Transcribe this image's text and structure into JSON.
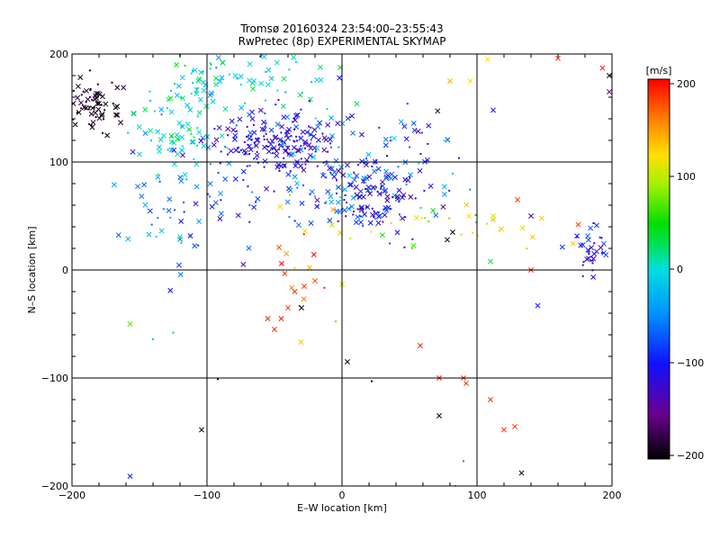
{
  "chart_data": {
    "type": "scatter",
    "title": "Tromsø 20160324 23:54:00–23:55:43",
    "subtitle": "RwPretec (8p) EXPERIMENTAL SKYMAP",
    "xlabel": "E–W location [km]",
    "ylabel": "N–S location [km]",
    "xlim": [
      -200,
      200
    ],
    "ylim": [
      -200,
      200
    ],
    "x_ticks": [
      -200,
      -100,
      0,
      100,
      200
    ],
    "y_ticks": [
      -200,
      -100,
      0,
      100,
      200
    ],
    "x_tick_labels": [
      "−200",
      "−100",
      "0",
      "100",
      "200"
    ],
    "y_tick_labels": [
      "−200",
      "−100",
      "0",
      "100",
      "200"
    ],
    "grid": true,
    "marker_types": [
      "cross",
      "dot"
    ],
    "colorbar": {
      "label": "[m/s]",
      "range": [
        -200,
        200
      ],
      "ticks": [
        200,
        100,
        0,
        -100,
        -200
      ],
      "tick_labels": [
        "200",
        "100",
        "0",
        "−100",
        "−200"
      ],
      "colormap": "rainbow (black → purple → blue → cyan → green → yellow → red)"
    },
    "clusters": [
      {
        "x": -185,
        "y": 152,
        "sx": 12,
        "sy": 12,
        "n": 70,
        "v": -190,
        "vs": 10
      },
      {
        "x": -50,
        "y": 120,
        "sx": 20,
        "sy": 15,
        "n": 170,
        "v": -110,
        "vs": 20
      },
      {
        "x": -120,
        "y": 130,
        "sx": 18,
        "sy": 18,
        "n": 70,
        "v": -10,
        "vs": 25
      },
      {
        "x": -70,
        "y": 175,
        "sx": 30,
        "sy": 15,
        "n": 80,
        "v": 0,
        "vs": 25
      },
      {
        "x": 5,
        "y": 95,
        "sx": 40,
        "sy": 30,
        "n": 170,
        "v": -80,
        "vs": 40
      },
      {
        "x": 30,
        "y": 65,
        "sx": 20,
        "sy": 15,
        "n": 90,
        "v": -115,
        "vs": 30
      },
      {
        "x": -110,
        "y": 60,
        "sx": 25,
        "sy": 25,
        "n": 60,
        "v": -70,
        "vs": 30
      },
      {
        "x": 80,
        "y": 40,
        "sx": 45,
        "sy": 12,
        "n": 30,
        "v": 90,
        "vs": 30
      },
      {
        "x": 190,
        "y": 18,
        "sx": 8,
        "sy": 10,
        "n": 40,
        "v": -100,
        "vs": 20
      },
      {
        "x": -30,
        "y": 5,
        "sx": 25,
        "sy": 40,
        "n": 20,
        "v": 160,
        "vs": 30
      }
    ],
    "points": [
      {
        "x": -55,
        "y": -45,
        "v": 190,
        "m": "cross"
      },
      {
        "x": -50,
        "y": -55,
        "v": 185,
        "m": "cross"
      },
      {
        "x": -40,
        "y": -35,
        "v": 180,
        "m": "cross"
      },
      {
        "x": -35,
        "y": -20,
        "v": 185,
        "m": "cross"
      },
      {
        "x": -28,
        "y": -15,
        "v": 180,
        "m": "cross"
      },
      {
        "x": -20,
        "y": -10,
        "v": 175,
        "m": "cross"
      },
      {
        "x": -30,
        "y": -35,
        "v": -200,
        "m": "cross"
      },
      {
        "x": -45,
        "y": -45,
        "v": 190,
        "m": "cross"
      },
      {
        "x": 58,
        "y": -70,
        "v": 190,
        "m": "cross"
      },
      {
        "x": 72,
        "y": -100,
        "v": 190,
        "m": "cross"
      },
      {
        "x": 90,
        "y": -100,
        "v": 185,
        "m": "cross"
      },
      {
        "x": 92,
        "y": -105,
        "v": 180,
        "m": "cross"
      },
      {
        "x": 110,
        "y": -120,
        "v": 185,
        "m": "cross"
      },
      {
        "x": 120,
        "y": -148,
        "v": 185,
        "m": "cross"
      },
      {
        "x": 128,
        "y": -145,
        "v": 180,
        "m": "cross"
      },
      {
        "x": 72,
        "y": -135,
        "v": -200,
        "m": "cross"
      },
      {
        "x": 133,
        "y": -188,
        "v": -200,
        "m": "cross"
      },
      {
        "x": -104,
        "y": -148,
        "v": -200,
        "m": "cross"
      },
      {
        "x": -157,
        "y": -191,
        "v": -100,
        "m": "cross"
      },
      {
        "x": -157,
        "y": -50,
        "v": 70,
        "m": "cross"
      },
      {
        "x": 4,
        "y": -85,
        "v": -200,
        "m": "cross"
      },
      {
        "x": 140,
        "y": 0,
        "v": 185,
        "m": "cross"
      },
      {
        "x": 145,
        "y": -33,
        "v": -100,
        "m": "cross"
      },
      {
        "x": 160,
        "y": 196,
        "v": 185,
        "m": "cross"
      },
      {
        "x": 193,
        "y": 187,
        "v": 190,
        "m": "cross"
      },
      {
        "x": 198,
        "y": 180,
        "v": -200,
        "m": "cross"
      },
      {
        "x": 198,
        "y": 165,
        "v": -150,
        "m": "cross"
      },
      {
        "x": 95,
        "y": 175,
        "v": 120,
        "m": "cross"
      },
      {
        "x": 108,
        "y": 195,
        "v": 120,
        "m": "cross"
      },
      {
        "x": 112,
        "y": 148,
        "v": -100,
        "m": "cross"
      },
      {
        "x": 130,
        "y": 65,
        "v": 180,
        "m": "cross"
      },
      {
        "x": 140,
        "y": 50,
        "v": -120,
        "m": "cross"
      },
      {
        "x": 148,
        "y": 48,
        "v": 130,
        "m": "cross"
      },
      {
        "x": 118,
        "y": 38,
        "v": 130,
        "m": "cross"
      },
      {
        "x": 112,
        "y": 50,
        "v": 100,
        "m": "cross"
      },
      {
        "x": 82,
        "y": 35,
        "v": -200,
        "m": "cross"
      },
      {
        "x": 78,
        "y": 28,
        "v": -200,
        "m": "cross"
      },
      {
        "x": 80,
        "y": 175,
        "v": 140,
        "m": "cross"
      },
      {
        "x": 110,
        "y": 8,
        "v": 30,
        "m": "cross"
      },
      {
        "x": 175,
        "y": 42,
        "v": 180,
        "m": "cross"
      },
      {
        "x": -92,
        "y": -101,
        "v": -200,
        "m": "dot"
      },
      {
        "x": 22,
        "y": -103,
        "v": -200,
        "m": "dot"
      },
      {
        "x": 90,
        "y": -177,
        "v": 180,
        "m": "dot"
      },
      {
        "x": 84,
        "y": -200,
        "v": 180,
        "m": "dot"
      },
      {
        "x": -140,
        "y": -64,
        "v": 30,
        "m": "dot"
      },
      {
        "x": -125,
        "y": -58,
        "v": 30,
        "m": "dot"
      }
    ]
  }
}
